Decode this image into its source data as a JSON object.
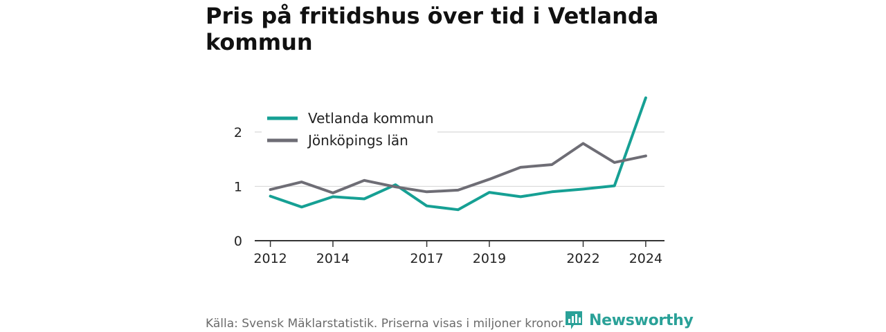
{
  "title": "Pris på fritidshus över tid i Vetlanda kommun",
  "source": "Källa: Svensk Mäklarstatistik. Priserna visas i miljoner kronor.",
  "brand": {
    "name": "Newsworthy",
    "icon": "bar-chart-speech-bubble-icon",
    "color": "#2aa198"
  },
  "chart_data": {
    "type": "line",
    "x": [
      2012,
      2013,
      2014,
      2015,
      2016,
      2017,
      2018,
      2019,
      2020,
      2021,
      2022,
      2023,
      2024
    ],
    "x_tick_labels": [
      "2012",
      "2014",
      "2017",
      "2019",
      "2022",
      "2024"
    ],
    "x_tick_values": [
      2012,
      2014,
      2017,
      2019,
      2022,
      2024
    ],
    "y_ticks": [
      0,
      1,
      2
    ],
    "y_tick_labels": [
      "0",
      "1",
      "2"
    ],
    "xlim": [
      2011.5,
      2024.6
    ],
    "ylim": [
      0,
      2.8
    ],
    "grid": true,
    "legend_position": "top-left",
    "series": [
      {
        "name": "Vetlanda kommun",
        "color": "#16a094",
        "values": [
          0.82,
          0.62,
          0.81,
          0.77,
          1.03,
          0.64,
          0.57,
          0.89,
          0.81,
          0.9,
          0.95,
          1.01,
          2.63
        ]
      },
      {
        "name": "Jönköpings län",
        "color": "#6e6d75",
        "values": [
          0.94,
          1.08,
          0.88,
          1.11,
          0.99,
          0.9,
          0.93,
          1.13,
          1.35,
          1.4,
          1.79,
          1.44,
          1.56
        ]
      }
    ]
  }
}
